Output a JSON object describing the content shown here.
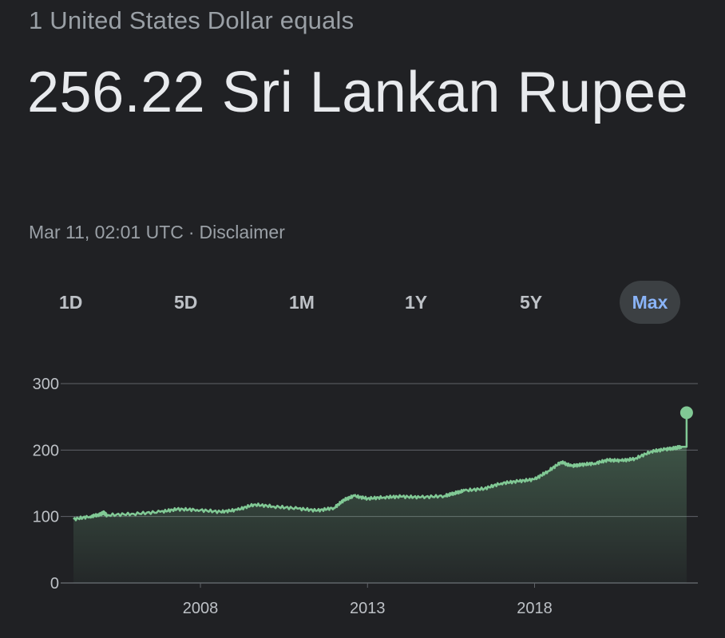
{
  "header": {
    "subtitle": "1 United States Dollar equals",
    "headline": "256.22 Sri Lankan Rupee",
    "timestamp": "Mar 11, 02:01 UTC",
    "separator": "·",
    "disclaimer": "Disclaimer"
  },
  "ranges": {
    "tabs": [
      {
        "label": "1D"
      },
      {
        "label": "5D"
      },
      {
        "label": "1M"
      },
      {
        "label": "1Y"
      },
      {
        "label": "5Y"
      },
      {
        "label": "Max"
      }
    ],
    "selected": "Max"
  },
  "colors": {
    "background": "#202124",
    "line": "#81c995",
    "grid": "#5f6368",
    "tick_text": "#bdc1c6",
    "active_tab_bg": "#3c4043",
    "active_tab_text": "#8ab4f8"
  },
  "chart_data": {
    "type": "area",
    "title": "",
    "xlabel": "",
    "ylabel": "",
    "ylim": [
      0,
      300
    ],
    "xlim": [
      2004.2,
      2022.6
    ],
    "y_ticks": [
      0,
      100,
      200,
      300
    ],
    "x_ticks": [
      2008,
      2013,
      2018
    ],
    "grid": true,
    "legend": "none",
    "series": [
      {
        "x": [
          2004.2,
          2004.7,
          2005.0,
          2005.1,
          2005.2,
          2006.0,
          2006.8,
          2007.3,
          2007.9,
          2008.6,
          2009.1,
          2009.6,
          2010.2,
          2010.9,
          2011.5,
          2012.0,
          2012.3,
          2012.6,
          2013.0,
          2013.5,
          2014.0,
          2014.6,
          2015.3,
          2015.6,
          2015.9,
          2016.5,
          2017.0,
          2017.5,
          2018.0,
          2018.4,
          2018.8,
          2019.1,
          2019.4,
          2019.8,
          2020.2,
          2020.6,
          2021.0,
          2021.5,
          2021.9,
          2022.2,
          2022.4,
          2022.55
        ],
        "y": [
          96,
          100,
          103,
          106,
          102,
          104,
          107,
          111,
          110,
          107,
          110,
          118,
          115,
          112,
          109,
          113,
          125,
          131,
          127,
          129,
          130,
          129,
          131,
          135,
          139,
          142,
          150,
          153,
          156,
          168,
          182,
          176,
          178,
          180,
          185,
          184,
          187,
          198,
          201,
          203,
          205,
          256.22
        ]
      }
    ],
    "current_value": 256.22
  }
}
